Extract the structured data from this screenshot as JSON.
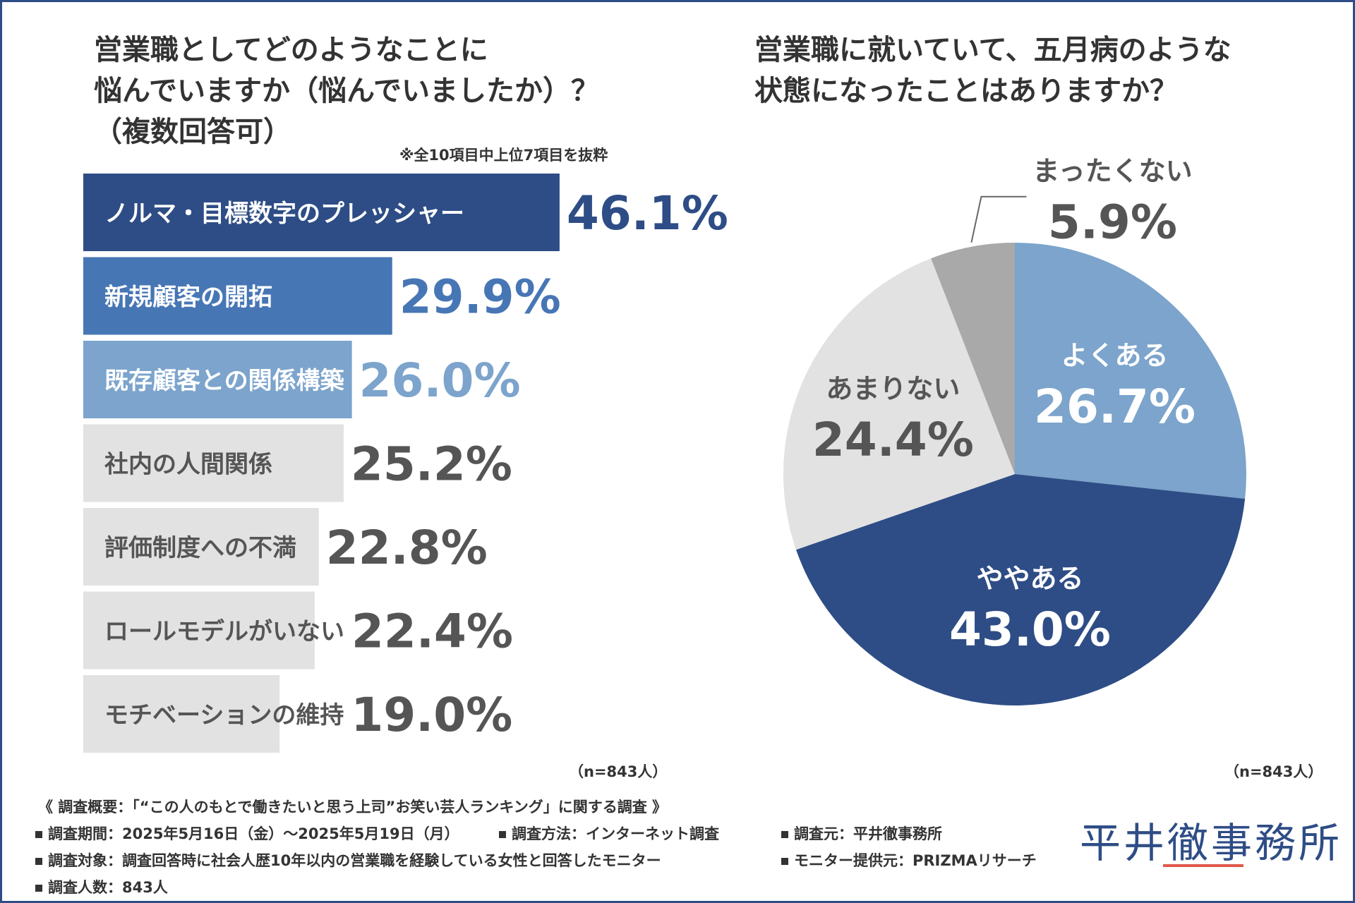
{
  "bar_chart": {
    "title_lines": [
      "営業職としてどのようなことに",
      "悩んでいますか（悩んでいましたか）？",
      "（複数回答可）"
    ],
    "note": "※全10項目中上位7項目を抜粋",
    "sample": "（n=843人）"
  },
  "pie_chart": {
    "title_lines": [
      "営業職に就いていて、五月病のような",
      "状態になったことはありますか？"
    ],
    "sample": "（n=843人）"
  },
  "chart_data": [
    {
      "type": "bar",
      "orientation": "horizontal",
      "title": "営業職としてどのようなことに悩んでいますか（悩んでいましたか）？（複数回答可）",
      "categories": [
        "ノルマ・目標数字のプレッシャー",
        "新規顧客の開拓",
        "既存顧客との関係構築",
        "社内の人間関係",
        "評価制度への不満",
        "ロールモデルがいない",
        "モチベーションの維持"
      ],
      "values": [
        46.1,
        29.9,
        26.0,
        25.2,
        22.8,
        22.4,
        19.0
      ],
      "value_labels": [
        "46.1%",
        "29.9%",
        "26.0%",
        "25.2%",
        "22.8%",
        "22.4%",
        "19.0%"
      ],
      "unit": "%",
      "xlim": [
        0,
        100
      ],
      "colors": [
        "#2e4d86",
        "#4776b5",
        "#7ca4cc",
        "#e2e2e2",
        "#e2e2e2",
        "#e2e2e2",
        "#e2e2e2"
      ],
      "label_colors": [
        "#ffffff",
        "#ffffff",
        "#ffffff",
        "#555555",
        "#555555",
        "#555555",
        "#555555"
      ],
      "value_colors": [
        "#2e4d86",
        "#4776b5",
        "#7ca4cc",
        "#555555",
        "#555555",
        "#555555",
        "#555555"
      ]
    },
    {
      "type": "pie",
      "title": "営業職に就いていて、五月病のような状態になったことはありますか？",
      "slices": [
        {
          "label": "よくある",
          "value": 26.7,
          "value_label": "26.7%",
          "color": "#7ca4cc",
          "text_color": "#ffffff"
        },
        {
          "label": "ややある",
          "value": 43.0,
          "value_label": "43.0%",
          "color": "#2e4d86",
          "text_color": "#ffffff"
        },
        {
          "label": "あまりない",
          "value": 24.4,
          "value_label": "24.4%",
          "color": "#e2e2e2",
          "text_color": "#555555"
        },
        {
          "label": "まったくない",
          "value": 5.9,
          "value_label": "5.9%",
          "color": "#a9a9a9",
          "text_color": "#555555"
        }
      ],
      "start": "12 o'clock",
      "direction": "clockwise"
    }
  ],
  "footer": {
    "overview": "《 調査概要：「“この人のもとで働きたいと思う上司”お笑い芸人ランキング」に関する調査 》",
    "period": "調査期間：2025年5月16日（金）～2025年5月19日（月）",
    "method": "調査方法：インターネット調査",
    "organizer": "調査元：平井徹事務所",
    "target": "調査対象：調査回答時に社会人歴10年以内の営業職を経験している女性と回答したモニター",
    "provider": "モニター提供元：PRIZMAリサーチ",
    "count": "調査人数：843人"
  },
  "logo": {
    "text": "平井徹事務所",
    "underline_color": "#e0584a"
  }
}
